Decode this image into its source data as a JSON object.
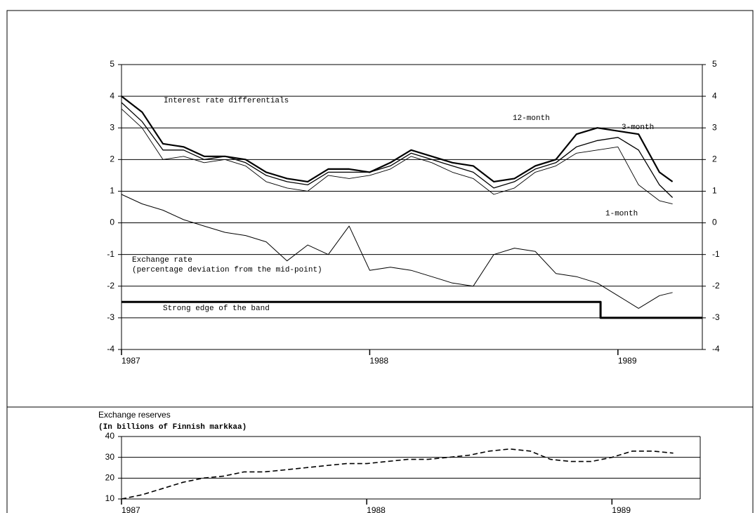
{
  "chart_data": [
    {
      "type": "line",
      "annotations": [
        "Interest rate differentials",
        "(percentage deviation from the mid-point)"
      ],
      "x": [
        1987,
        1987.083,
        1987.167,
        1987.25,
        1987.333,
        1987.417,
        1987.5,
        1987.583,
        1987.667,
        1987.75,
        1987.833,
        1987.917,
        1988,
        1988.083,
        1988.167,
        1988.25,
        1988.333,
        1988.417,
        1988.5,
        1988.583,
        1988.667,
        1988.75,
        1988.833,
        1988.917,
        1989,
        1989.083,
        1989.167,
        1989.22
      ],
      "series": [
        {
          "name": "12-month",
          "color": "#000000",
          "values": [
            4.0,
            3.5,
            2.5,
            2.4,
            2.1,
            2.1,
            2.0,
            1.6,
            1.4,
            1.3,
            1.7,
            1.7,
            1.6,
            1.9,
            2.3,
            2.1,
            1.9,
            1.8,
            1.3,
            1.4,
            1.8,
            2.0,
            2.8,
            3.0,
            2.9,
            2.8,
            1.6,
            1.3
          ]
        },
        {
          "name": "3-month",
          "color": "#000000",
          "values": [
            3.8,
            3.2,
            2.3,
            2.3,
            2.0,
            2.1,
            1.9,
            1.5,
            1.3,
            1.2,
            1.6,
            1.6,
            1.6,
            1.8,
            2.2,
            2.0,
            1.8,
            1.6,
            1.1,
            1.3,
            1.7,
            1.9,
            2.4,
            2.6,
            2.7,
            2.3,
            1.2,
            0.8
          ]
        },
        {
          "name": "1-month",
          "color": "#000000",
          "values": [
            3.6,
            3.0,
            2.0,
            2.1,
            1.9,
            2.0,
            1.8,
            1.3,
            1.1,
            1.0,
            1.5,
            1.4,
            1.5,
            1.7,
            2.1,
            1.9,
            1.6,
            1.4,
            0.9,
            1.1,
            1.6,
            1.8,
            2.2,
            2.3,
            2.4,
            1.2,
            0.7,
            0.6
          ]
        },
        {
          "name": "Exchange rate",
          "color": "#000000",
          "values": [
            0.9,
            0.6,
            0.4,
            0.1,
            -0.1,
            -0.3,
            -0.4,
            -0.6,
            -1.2,
            -0.7,
            -1.0,
            -0.1,
            -1.5,
            -1.4,
            -1.5,
            -1.7,
            -1.9,
            -2.0,
            -1.0,
            -0.8,
            -0.9,
            -1.6,
            -1.7,
            -1.9,
            -2.3,
            -2.7,
            -2.3,
            -2.2
          ]
        },
        {
          "name": "Strong edge of the band",
          "color": "#000000",
          "x": [
            1987,
            1988.93,
            1988.93,
            1989.34
          ],
          "values": [
            -2.5,
            -2.5,
            -3,
            -3
          ]
        }
      ],
      "xlim": [
        1987,
        1989.34
      ],
      "xticks": [
        1987,
        1988,
        1989
      ],
      "ylim": [
        -4,
        5
      ],
      "yticks": [
        -4,
        -3,
        -2,
        -1,
        0,
        1,
        2,
        3,
        4,
        5
      ],
      "grid": true
    },
    {
      "type": "line",
      "title": "Exchange reserves",
      "subtitle": "(In billions of Finnish markkaa)",
      "x": [
        1987,
        1987.083,
        1987.167,
        1987.25,
        1987.333,
        1987.417,
        1987.5,
        1987.583,
        1987.667,
        1987.75,
        1987.833,
        1987.917,
        1988,
        1988.083,
        1988.167,
        1988.25,
        1988.333,
        1988.417,
        1988.5,
        1988.583,
        1988.667,
        1988.75,
        1988.833,
        1988.917,
        1989,
        1989.083,
        1989.167,
        1989.25
      ],
      "series": [
        {
          "color": "#000000",
          "values": [
            10,
            12,
            15,
            18,
            20,
            21,
            23,
            23,
            24,
            25,
            26,
            27,
            27,
            28,
            29,
            29,
            30,
            31,
            33,
            34,
            33,
            29,
            28,
            28,
            30,
            33,
            33,
            32
          ]
        }
      ],
      "xlim": [
        1987,
        1989.36
      ],
      "xticks": [
        1987,
        1988,
        1989
      ],
      "ylim": [
        10,
        40
      ],
      "yticks": [
        10,
        20,
        30,
        40
      ],
      "grid": true
    }
  ]
}
